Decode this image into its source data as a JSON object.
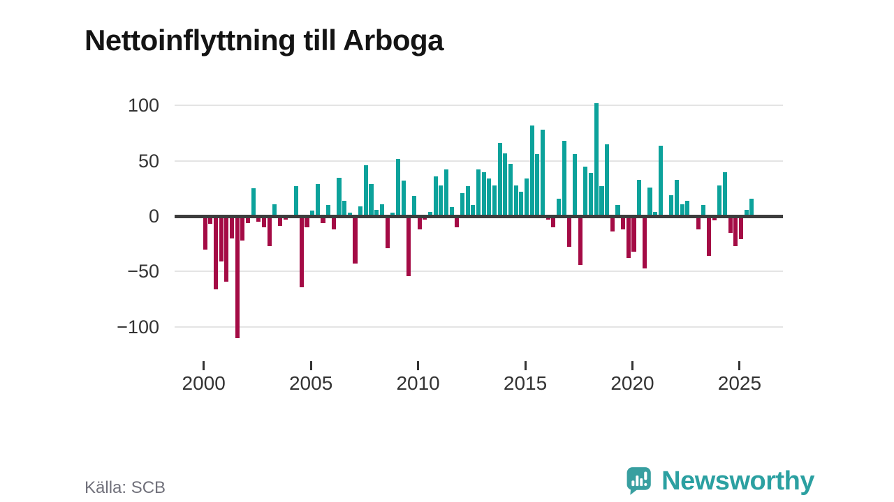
{
  "title": "Nettoinflyttning till Arboga",
  "source": "Källa: SCB",
  "logo": {
    "text": "Newsworthy"
  },
  "colors": {
    "positive": "#0ca29b",
    "negative": "#a40b45",
    "zero_line": "#3d3d3d",
    "gridline": "#e4e4e4",
    "axis_text": "#333333",
    "title_text": "#141414",
    "source_text": "#71717b",
    "logo_teal": "#2ba0a1"
  },
  "chart_data": {
    "type": "bar",
    "title": "Nettoinflyttning till Arboga",
    "frequency": "quarterly",
    "grid": "horizontal",
    "legend": "none",
    "ylim": [
      -120,
      110
    ],
    "yticks": [
      100,
      50,
      0,
      -50,
      -100
    ],
    "xticks": [
      2000,
      2005,
      2010,
      2015,
      2020,
      2025
    ],
    "positive_color": "#0ca29b",
    "negative_color": "#a40b45",
    "categories": [
      "2000 Q1",
      "2000 Q2",
      "2000 Q3",
      "2000 Q4",
      "2001 Q1",
      "2001 Q2",
      "2001 Q3",
      "2001 Q4",
      "2002 Q1",
      "2002 Q2",
      "2002 Q3",
      "2002 Q4",
      "2003 Q1",
      "2003 Q2",
      "2003 Q3",
      "2003 Q4",
      "2004 Q1",
      "2004 Q2",
      "2004 Q3",
      "2004 Q4",
      "2005 Q1",
      "2005 Q2",
      "2005 Q3",
      "2005 Q4",
      "2006 Q1",
      "2006 Q2",
      "2006 Q3",
      "2006 Q4",
      "2007 Q1",
      "2007 Q2",
      "2007 Q3",
      "2007 Q4",
      "2008 Q1",
      "2008 Q2",
      "2008 Q3",
      "2008 Q4",
      "2009 Q1",
      "2009 Q2",
      "2009 Q3",
      "2009 Q4",
      "2010 Q1",
      "2010 Q2",
      "2010 Q3",
      "2010 Q4",
      "2011 Q1",
      "2011 Q2",
      "2011 Q3",
      "2011 Q4",
      "2012 Q1",
      "2012 Q2",
      "2012 Q3",
      "2012 Q4",
      "2013 Q1",
      "2013 Q2",
      "2013 Q3",
      "2013 Q4",
      "2014 Q1",
      "2014 Q2",
      "2014 Q3",
      "2014 Q4",
      "2015 Q1",
      "2015 Q2",
      "2015 Q3",
      "2015 Q4",
      "2016 Q1",
      "2016 Q2",
      "2016 Q3",
      "2016 Q4",
      "2017 Q1",
      "2017 Q2",
      "2017 Q3",
      "2017 Q4",
      "2018 Q1",
      "2018 Q2",
      "2018 Q3",
      "2018 Q4",
      "2019 Q1",
      "2019 Q2",
      "2019 Q3",
      "2019 Q4",
      "2020 Q1",
      "2020 Q2",
      "2020 Q3",
      "2020 Q4",
      "2021 Q1",
      "2021 Q2",
      "2021 Q3",
      "2021 Q4",
      "2022 Q1",
      "2022 Q2",
      "2022 Q3",
      "2022 Q4",
      "2023 Q1",
      "2023 Q2",
      "2023 Q3",
      "2023 Q4",
      "2024 Q1",
      "2024 Q2",
      "2024 Q3",
      "2024 Q4",
      "2025 Q1",
      "2025 Q2",
      "2025 Q3"
    ],
    "values": [
      -30,
      -7,
      -66,
      -41,
      -59,
      -20,
      -110,
      -22,
      -6,
      25,
      -5,
      -10,
      -27,
      11,
      -9,
      -3,
      -1,
      27,
      -64,
      -10,
      5,
      29,
      -6,
      10,
      -12,
      35,
      14,
      3,
      -43,
      9,
      46,
      29,
      6,
      11,
      -29,
      3,
      52,
      32,
      -54,
      18,
      -12,
      -3,
      4,
      36,
      28,
      42,
      8,
      -10,
      21,
      27,
      10,
      42,
      40,
      34,
      28,
      66,
      57,
      47,
      28,
      22,
      34,
      82,
      56,
      78,
      -3,
      -10,
      16,
      68,
      -28,
      56,
      -44,
      45,
      39,
      102,
      27,
      65,
      -14,
      10,
      -12,
      -38,
      -32,
      33,
      -47,
      26,
      4,
      64,
      0,
      19,
      33,
      11,
      14,
      0,
      -12,
      10,
      -36,
      -4,
      28,
      40,
      -15,
      -27,
      -21,
      6,
      16
    ]
  }
}
